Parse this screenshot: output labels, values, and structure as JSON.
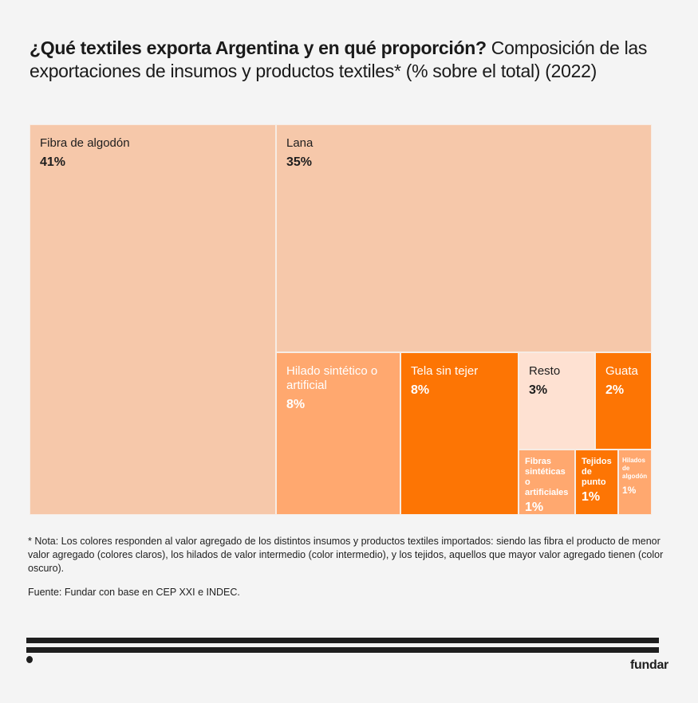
{
  "title": {
    "bold": "¿Qué textiles exporta Argentina y en qué proporción?",
    "rest": " Composición de las exportaciones de insumos y productos textiles* (% sobre el total) (2022)"
  },
  "chart_data": {
    "type": "treemap",
    "title": "¿Qué textiles exporta Argentina y en qué proporción? Composición de las exportaciones de insumos y productos textiles* (% sobre el total) (2022)",
    "unit": "% sobre el total",
    "colors": {
      "claro": "#f6c8aa",
      "intermedio": "#ffa86f",
      "oscuro": "#fd7504",
      "resto": "#fee1d2"
    },
    "items": [
      {
        "label": "Fibra de algodón",
        "value": 41,
        "display": "41%",
        "group": "claro"
      },
      {
        "label": "Lana",
        "value": 35,
        "display": "35%",
        "group": "claro"
      },
      {
        "label": "Hilado sintético o artificial",
        "value": 8,
        "display": "8%",
        "group": "intermedio"
      },
      {
        "label": "Tela sin tejer",
        "value": 8,
        "display": "8%",
        "group": "oscuro"
      },
      {
        "label": "Resto",
        "value": 3,
        "display": "3%",
        "group": "resto"
      },
      {
        "label": "Guata",
        "value": 2,
        "display": "2%",
        "group": "oscuro"
      },
      {
        "label": "Fibras sintéticas o artificiales",
        "value": 1,
        "display": "1%",
        "group": "intermedio"
      },
      {
        "label": "Tejidos de punto",
        "value": 1,
        "display": "1%",
        "group": "oscuro"
      },
      {
        "label": "Hilados de algodón",
        "value": 1,
        "display": "1%",
        "group": "intermedio"
      }
    ]
  },
  "note": "* Nota: Los colores responden al valor agregado de los distintos insumos y productos textiles importados: siendo las fibra el producto de menor valor agregado (colores claros), los hilados de valor intermedio (color intermedio), y los tejidos, aquellos que mayor valor agregado tienen (color oscuro).",
  "source": "Fuente: Fundar con base en CEP XXI e INDEC.",
  "brand": "fundar"
}
